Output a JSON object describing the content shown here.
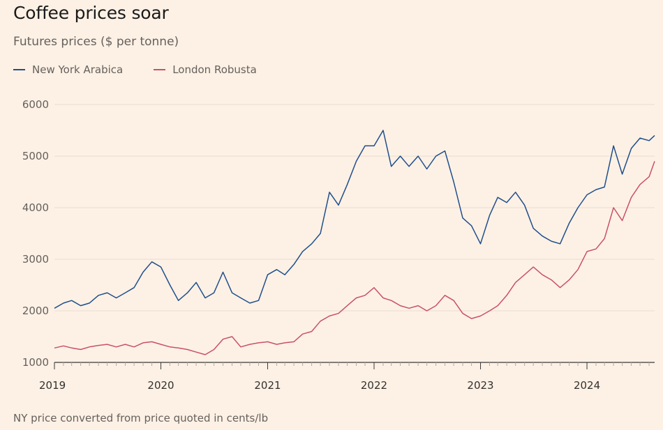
{
  "title": "Coffee prices soar",
  "subtitle": "Futures prices ($ per tonne)",
  "footnote": "NY price converted from price quoted in cents/lb",
  "chart_data": {
    "type": "line",
    "title": "Coffee prices soar",
    "subtitle": "Futures prices ($ per tonne)",
    "xlabel": "",
    "ylabel": "",
    "ylim": [
      1000,
      6000
    ],
    "xlim": [
      "2019-01-01",
      "2024-08-20"
    ],
    "y_ticks": [
      1000,
      2000,
      3000,
      4000,
      5000,
      6000
    ],
    "x_ticks": [
      {
        "label": "2019",
        "date": "2019-01-01"
      },
      {
        "label": "2020",
        "date": "2020-01-01"
      },
      {
        "label": "2021",
        "date": "2021-01-01"
      },
      {
        "label": "2022",
        "date": "2022-01-01"
      },
      {
        "label": "2023",
        "date": "2023-01-01"
      },
      {
        "label": "2024",
        "date": "2024-01-01"
      }
    ],
    "grid": "horizontal",
    "legend_position": "top-left",
    "series": [
      {
        "name": "New York Arabica",
        "color": "#1f4e8c",
        "points": [
          [
            "2019-01-01",
            2050
          ],
          [
            "2019-02-01",
            2150
          ],
          [
            "2019-03-01",
            2200
          ],
          [
            "2019-04-01",
            2100
          ],
          [
            "2019-05-01",
            2150
          ],
          [
            "2019-06-01",
            2300
          ],
          [
            "2019-07-01",
            2350
          ],
          [
            "2019-08-01",
            2250
          ],
          [
            "2019-09-01",
            2350
          ],
          [
            "2019-10-01",
            2450
          ],
          [
            "2019-11-01",
            2750
          ],
          [
            "2019-12-01",
            2950
          ],
          [
            "2020-01-01",
            2850
          ],
          [
            "2020-02-01",
            2500
          ],
          [
            "2020-03-01",
            2200
          ],
          [
            "2020-04-01",
            2350
          ],
          [
            "2020-05-01",
            2550
          ],
          [
            "2020-06-01",
            2250
          ],
          [
            "2020-07-01",
            2350
          ],
          [
            "2020-08-01",
            2750
          ],
          [
            "2020-09-01",
            2350
          ],
          [
            "2020-10-01",
            2250
          ],
          [
            "2020-11-01",
            2150
          ],
          [
            "2020-12-01",
            2200
          ],
          [
            "2021-01-01",
            2700
          ],
          [
            "2021-02-01",
            2800
          ],
          [
            "2021-03-01",
            2700
          ],
          [
            "2021-04-01",
            2900
          ],
          [
            "2021-05-01",
            3150
          ],
          [
            "2021-06-01",
            3300
          ],
          [
            "2021-07-01",
            3500
          ],
          [
            "2021-08-01",
            4300
          ],
          [
            "2021-09-01",
            4050
          ],
          [
            "2021-10-01",
            4450
          ],
          [
            "2021-11-01",
            4900
          ],
          [
            "2021-12-01",
            5200
          ],
          [
            "2022-01-01",
            5200
          ],
          [
            "2022-02-01",
            5500
          ],
          [
            "2022-03-01",
            4800
          ],
          [
            "2022-04-01",
            5000
          ],
          [
            "2022-05-01",
            4800
          ],
          [
            "2022-06-01",
            5000
          ],
          [
            "2022-07-01",
            4750
          ],
          [
            "2022-08-01",
            5000
          ],
          [
            "2022-09-01",
            5100
          ],
          [
            "2022-10-01",
            4500
          ],
          [
            "2022-11-01",
            3800
          ],
          [
            "2022-12-01",
            3650
          ],
          [
            "2023-01-01",
            3300
          ],
          [
            "2023-02-01",
            3850
          ],
          [
            "2023-03-01",
            4200
          ],
          [
            "2023-04-01",
            4100
          ],
          [
            "2023-05-01",
            4300
          ],
          [
            "2023-06-01",
            4050
          ],
          [
            "2023-07-01",
            3600
          ],
          [
            "2023-08-01",
            3450
          ],
          [
            "2023-09-01",
            3350
          ],
          [
            "2023-10-01",
            3300
          ],
          [
            "2023-11-01",
            3700
          ],
          [
            "2023-12-01",
            4000
          ],
          [
            "2024-01-01",
            4250
          ],
          [
            "2024-02-01",
            4350
          ],
          [
            "2024-03-01",
            4400
          ],
          [
            "2024-04-01",
            5200
          ],
          [
            "2024-05-01",
            4650
          ],
          [
            "2024-06-01",
            5150
          ],
          [
            "2024-07-01",
            5350
          ],
          [
            "2024-08-01",
            5300
          ],
          [
            "2024-08-20",
            5400
          ]
        ]
      },
      {
        "name": "London Robusta",
        "color": "#c9506c",
        "points": [
          [
            "2019-01-01",
            1280
          ],
          [
            "2019-02-01",
            1320
          ],
          [
            "2019-03-01",
            1280
          ],
          [
            "2019-04-01",
            1250
          ],
          [
            "2019-05-01",
            1300
          ],
          [
            "2019-06-01",
            1330
          ],
          [
            "2019-07-01",
            1350
          ],
          [
            "2019-08-01",
            1300
          ],
          [
            "2019-09-01",
            1350
          ],
          [
            "2019-10-01",
            1300
          ],
          [
            "2019-11-01",
            1380
          ],
          [
            "2019-12-01",
            1400
          ],
          [
            "2020-01-01",
            1350
          ],
          [
            "2020-02-01",
            1300
          ],
          [
            "2020-03-01",
            1280
          ],
          [
            "2020-04-01",
            1250
          ],
          [
            "2020-05-01",
            1200
          ],
          [
            "2020-06-01",
            1150
          ],
          [
            "2020-07-01",
            1250
          ],
          [
            "2020-08-01",
            1450
          ],
          [
            "2020-09-01",
            1500
          ],
          [
            "2020-10-01",
            1300
          ],
          [
            "2020-11-01",
            1350
          ],
          [
            "2020-12-01",
            1380
          ],
          [
            "2021-01-01",
            1400
          ],
          [
            "2021-02-01",
            1350
          ],
          [
            "2021-03-01",
            1380
          ],
          [
            "2021-04-01",
            1400
          ],
          [
            "2021-05-01",
            1550
          ],
          [
            "2021-06-01",
            1600
          ],
          [
            "2021-07-01",
            1800
          ],
          [
            "2021-08-01",
            1900
          ],
          [
            "2021-09-01",
            1950
          ],
          [
            "2021-10-01",
            2100
          ],
          [
            "2021-11-01",
            2250
          ],
          [
            "2021-12-01",
            2300
          ],
          [
            "2022-01-01",
            2450
          ],
          [
            "2022-02-01",
            2250
          ],
          [
            "2022-03-01",
            2200
          ],
          [
            "2022-04-01",
            2100
          ],
          [
            "2022-05-01",
            2050
          ],
          [
            "2022-06-01",
            2100
          ],
          [
            "2022-07-01",
            2000
          ],
          [
            "2022-08-01",
            2100
          ],
          [
            "2022-09-01",
            2300
          ],
          [
            "2022-10-01",
            2200
          ],
          [
            "2022-11-01",
            1950
          ],
          [
            "2022-12-01",
            1850
          ],
          [
            "2023-01-01",
            1900
          ],
          [
            "2023-02-01",
            2000
          ],
          [
            "2023-03-01",
            2100
          ],
          [
            "2023-04-01",
            2300
          ],
          [
            "2023-05-01",
            2550
          ],
          [
            "2023-06-01",
            2700
          ],
          [
            "2023-07-01",
            2850
          ],
          [
            "2023-08-01",
            2700
          ],
          [
            "2023-09-01",
            2600
          ],
          [
            "2023-10-01",
            2450
          ],
          [
            "2023-11-01",
            2600
          ],
          [
            "2023-12-01",
            2800
          ],
          [
            "2024-01-01",
            3150
          ],
          [
            "2024-02-01",
            3200
          ],
          [
            "2024-03-01",
            3400
          ],
          [
            "2024-04-01",
            4000
          ],
          [
            "2024-05-01",
            3750
          ],
          [
            "2024-06-01",
            4200
          ],
          [
            "2024-07-01",
            4450
          ],
          [
            "2024-08-01",
            4600
          ],
          [
            "2024-08-20",
            4900
          ]
        ]
      }
    ]
  }
}
